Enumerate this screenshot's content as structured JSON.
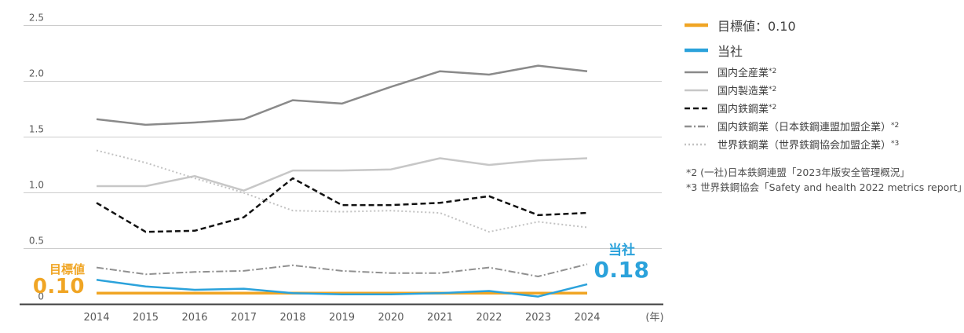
{
  "chart_data": {
    "type": "line",
    "title": "",
    "xlabel": "",
    "ylabel": "",
    "x": [
      "2014",
      "2015",
      "2016",
      "2017",
      "2018",
      "2019",
      "2020",
      "2021",
      "2022",
      "2023",
      "2024"
    ],
    "x_axis_suffix": "(年)",
    "ylim": [
      0,
      2.5
    ],
    "yticks": [
      0,
      0.5,
      1,
      1.5,
      2,
      2.5
    ],
    "ytick_labels": [
      "0",
      "0.5",
      "1.0",
      "1.5",
      "2.0",
      "2.5"
    ],
    "grid": true,
    "legend_position": "right",
    "colors": {
      "grid": "#cccccc",
      "baseline": "#3f3f3f",
      "tick_text": "#595959",
      "legend_text": "#404040",
      "footnote_text": "#4d4d4d"
    },
    "series": [
      {
        "label": "目標値：0.10",
        "sup": "",
        "style": "solid",
        "color": "#F0A524",
        "width": 3.5,
        "emphasis": true,
        "values": [
          0.1,
          0.1,
          0.1,
          0.1,
          0.1,
          0.1,
          0.1,
          0.1,
          0.1,
          0.1,
          0.1
        ]
      },
      {
        "label": "当社",
        "sup": "",
        "style": "solid",
        "color": "#2BA2DB",
        "width": 2.5,
        "emphasis": true,
        "values": [
          0.22,
          0.16,
          0.13,
          0.14,
          0.1,
          0.09,
          0.09,
          0.1,
          0.12,
          0.07,
          0.18
        ]
      },
      {
        "label": "国内全産業",
        "sup": "*2",
        "style": "solid",
        "color": "#8A8A8A",
        "width": 2.5,
        "emphasis": false,
        "values": [
          1.66,
          1.61,
          1.63,
          1.66,
          1.83,
          1.8,
          1.95,
          2.09,
          2.06,
          2.14,
          2.09
        ]
      },
      {
        "label": "国内製造業",
        "sup": "*2",
        "style": "solid",
        "color": "#C7C7C7",
        "width": 2.5,
        "emphasis": false,
        "values": [
          1.06,
          1.06,
          1.15,
          1.02,
          1.2,
          1.2,
          1.21,
          1.31,
          1.25,
          1.29,
          1.31
        ]
      },
      {
        "label": "国内鉄鋼業",
        "sup": "*2",
        "style": "dashed",
        "color": "#111111",
        "width": 2.5,
        "emphasis": false,
        "values": [
          0.91,
          0.65,
          0.66,
          0.78,
          1.13,
          0.89,
          0.89,
          0.91,
          0.97,
          0.8,
          0.82
        ]
      },
      {
        "label": "国内鉄鋼業（日本鉄鋼連盟加盟企業）",
        "sup": "*2",
        "style": "dashdot",
        "color": "#909090",
        "width": 2,
        "emphasis": false,
        "values": [
          0.33,
          0.27,
          0.29,
          0.3,
          0.35,
          0.3,
          0.28,
          0.28,
          0.33,
          0.25,
          0.36
        ]
      },
      {
        "label": "世界鉄鋼業（世界鉄鋼協会加盟企業）",
        "sup": "*3",
        "style": "dotted",
        "color": "#C2C2C2",
        "width": 2,
        "emphasis": false,
        "values": [
          1.38,
          1.27,
          1.13,
          1.0,
          0.84,
          0.83,
          0.84,
          0.82,
          0.65,
          0.74,
          0.69
        ]
      }
    ],
    "annotations": {
      "target": {
        "label": "目標値",
        "value": "0.10",
        "color": "#F0A524"
      },
      "company": {
        "label": "当社",
        "value": "0.18",
        "color": "#2BA2DB"
      }
    }
  },
  "footnotes": [
    "*2 (一社)日本鉄鋼連盟「2023年版安全管理概況」",
    "*3 世界鉄鋼協会「Safety and health 2022 metrics report」"
  ]
}
